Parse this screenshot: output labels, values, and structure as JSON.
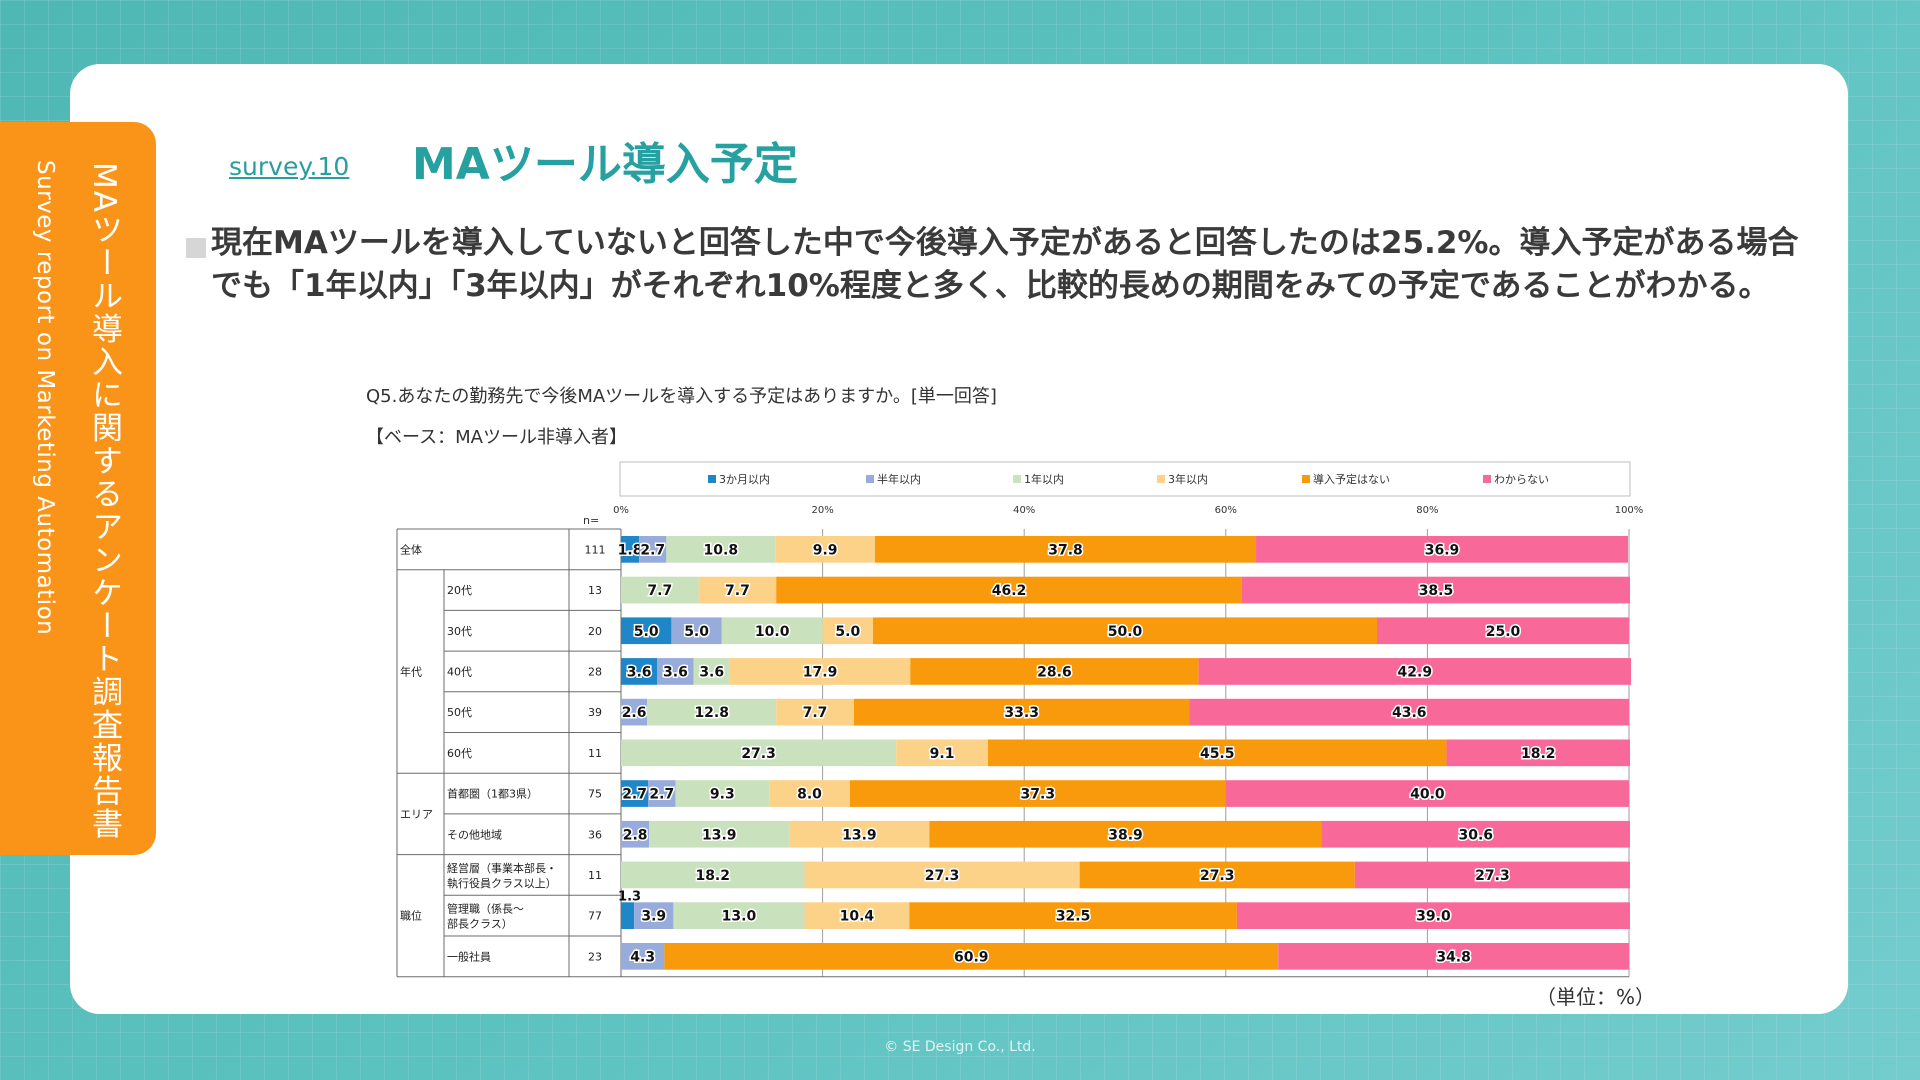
{
  "header": {
    "survey_label": "survey.10",
    "title": "MAツール導入予定"
  },
  "side": {
    "title_ja": "MAツール導入に関するアンケート調査報告書",
    "title_en": "Survey report on Marketing Automation"
  },
  "summary": "現在MAツールを導入していないと回答した中で今後導入予定があると回答したのは25.2%。導入予定がある場合でも「1年以内」「3年以内」がそれぞれ10%程度と多く、比較的長めの期間をみての予定であることがわかる。",
  "question": "Q5.あなたの勤務先で今後MAツールを導入する予定はありますか。[単一回答]",
  "base": "【ベース：MAツール非導入者】",
  "unit": "（単位：%）",
  "copyright": "© SE Design Co., Ltd.",
  "chart_data": {
    "type": "bar",
    "orientation": "horizontal",
    "stacked": true,
    "percent_axis": [
      0,
      20,
      40,
      60,
      80,
      100
    ],
    "axis_tick_labels": [
      "0%",
      "20%",
      "40%",
      "60%",
      "80%",
      "100%"
    ],
    "xlim": [
      0,
      100
    ],
    "n_header": "n=",
    "legend_position": "top",
    "series": [
      {
        "name": "3か月以内",
        "color": "#1f86c7"
      },
      {
        "name": "半年以内",
        "color": "#98acdb"
      },
      {
        "name": "1年以内",
        "color": "#c9e2bd"
      },
      {
        "name": "3年以内",
        "color": "#fcd289"
      },
      {
        "name": "導入予定はない",
        "color": "#f99a0c"
      },
      {
        "name": "わからない",
        "color": "#f8699a"
      }
    ],
    "groups": [
      {
        "name": "",
        "rows": [
          {
            "label": "全体",
            "n": 111,
            "values": [
              1.8,
              2.7,
              10.8,
              9.9,
              37.8,
              36.9
            ]
          }
        ]
      },
      {
        "name": "年代",
        "rows": [
          {
            "label": "20代",
            "n": 13,
            "values": [
              0,
              0,
              7.7,
              7.7,
              46.2,
              38.5
            ]
          },
          {
            "label": "30代",
            "n": 20,
            "values": [
              5.0,
              5.0,
              10.0,
              5.0,
              50.0,
              25.0
            ]
          },
          {
            "label": "40代",
            "n": 28,
            "values": [
              3.6,
              3.6,
              3.6,
              17.9,
              28.6,
              42.9
            ]
          },
          {
            "label": "50代",
            "n": 39,
            "values": [
              0,
              2.6,
              12.8,
              7.7,
              33.3,
              43.6
            ]
          },
          {
            "label": "60代",
            "n": 11,
            "values": [
              0,
              0,
              27.3,
              9.1,
              45.5,
              18.2
            ]
          }
        ]
      },
      {
        "name": "エリア",
        "rows": [
          {
            "label": "首都圏（1都3県）",
            "n": 75,
            "values": [
              2.7,
              2.7,
              9.3,
              8.0,
              37.3,
              40.0
            ]
          },
          {
            "label": "その他地域",
            "n": 36,
            "values": [
              0,
              2.8,
              13.9,
              13.9,
              38.9,
              30.6
            ]
          }
        ]
      },
      {
        "name": "職位",
        "rows": [
          {
            "label": "経営層（事業本部長・執行役員クラス以上）",
            "n": 11,
            "values": [
              0,
              0,
              18.2,
              27.3,
              27.3,
              27.3
            ]
          },
          {
            "label": "管理職（係長～部長クラス）",
            "n": 77,
            "values": [
              1.3,
              3.9,
              13.0,
              10.4,
              32.5,
              39.0
            ]
          },
          {
            "label": "一般社員",
            "n": 23,
            "values": [
              0,
              4.3,
              0,
              0,
              60.9,
              34.8
            ]
          }
        ]
      }
    ]
  }
}
